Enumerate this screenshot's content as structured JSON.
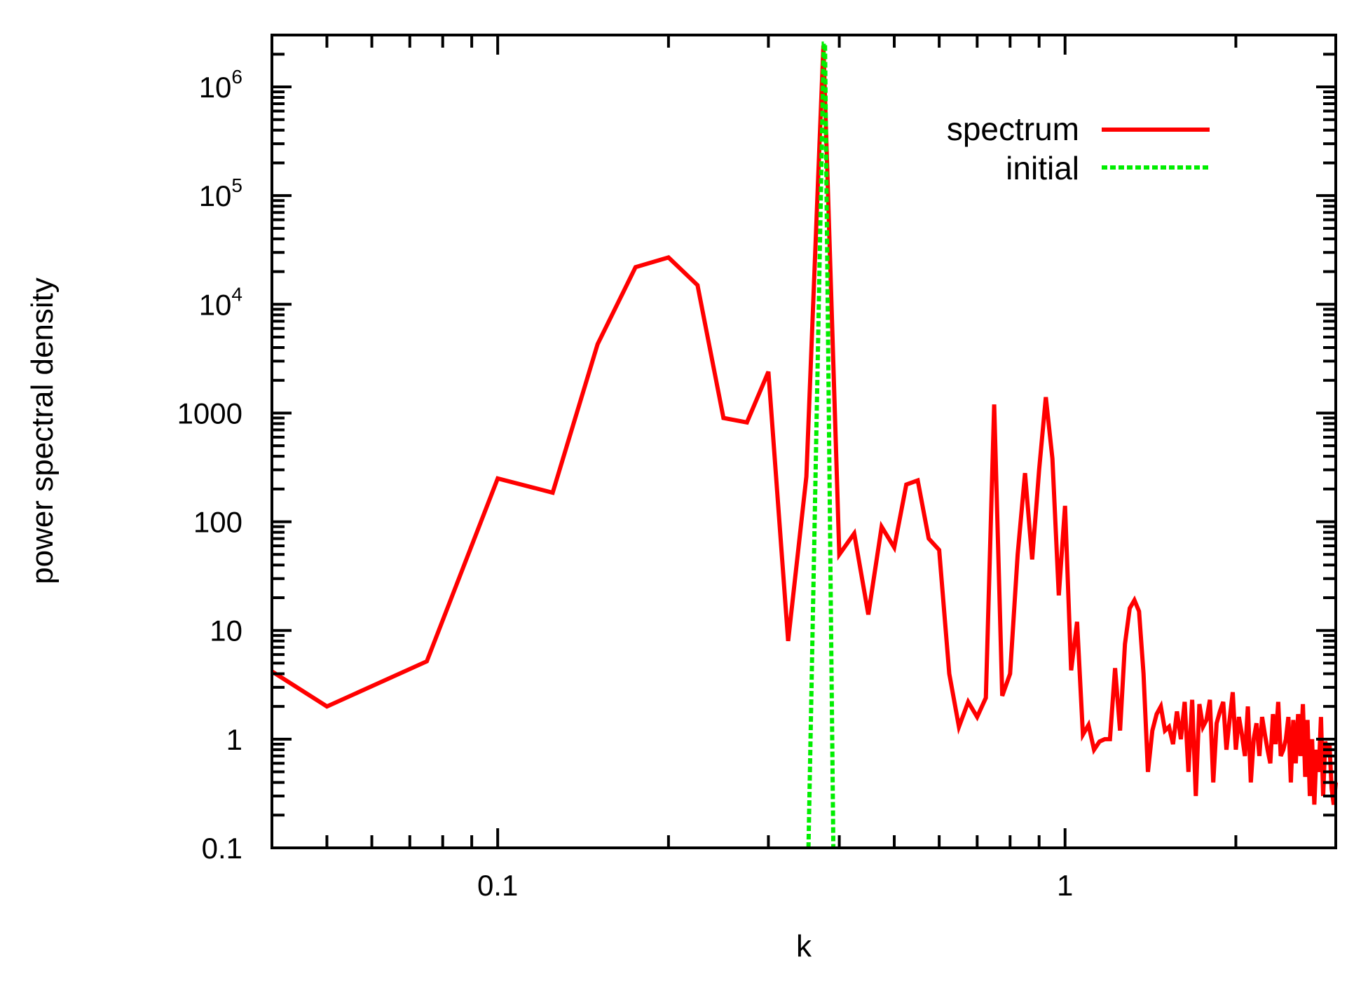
{
  "chart_data": {
    "type": "line",
    "xlabel": "k",
    "ylabel": "power spectral density",
    "xscale": "log",
    "yscale": "log",
    "xlim": [
      0.04,
      3.0
    ],
    "ylim": [
      0.1,
      3000000
    ],
    "grid": false,
    "legend_position": "top-right",
    "x_ticks": [
      {
        "value": 0.1,
        "label": "0.1"
      },
      {
        "value": 1,
        "label": "1"
      }
    ],
    "y_ticks": [
      {
        "value": 0.1,
        "label": "0.1",
        "base": "",
        "exp": ""
      },
      {
        "value": 1,
        "label": "1",
        "base": "",
        "exp": ""
      },
      {
        "value": 10,
        "label": "10",
        "base": "",
        "exp": ""
      },
      {
        "value": 100,
        "label": "100",
        "base": "",
        "exp": ""
      },
      {
        "value": 1000,
        "label": "1000",
        "base": "",
        "exp": ""
      },
      {
        "value": 10000,
        "label": "",
        "base": "10",
        "exp": "4"
      },
      {
        "value": 100000,
        "label": "",
        "base": "10",
        "exp": "5"
      },
      {
        "value": 1000000,
        "label": "",
        "base": "10",
        "exp": "6"
      }
    ],
    "series": [
      {
        "name": "spectrum",
        "color": "#ff0000",
        "dash": "solid",
        "x": [
          0.04,
          0.05,
          0.075,
          0.1,
          0.125,
          0.15,
          0.175,
          0.2,
          0.225,
          0.25,
          0.275,
          0.3,
          0.325,
          0.35,
          0.375,
          0.4,
          0.425,
          0.45,
          0.475,
          0.5,
          0.525,
          0.55,
          0.575,
          0.6,
          0.625,
          0.65,
          0.675,
          0.7,
          0.725,
          0.75,
          0.775,
          0.8,
          0.825,
          0.85,
          0.875,
          0.9,
          0.925,
          0.95,
          0.975,
          1.0,
          1.025,
          1.05,
          1.075,
          1.1,
          1.125,
          1.15,
          1.175,
          1.2,
          1.225,
          1.25,
          1.275,
          1.3,
          1.325,
          1.35,
          1.375,
          1.4,
          1.425,
          1.45,
          1.475,
          1.5,
          1.525,
          1.55,
          1.575,
          1.6,
          1.625,
          1.65,
          1.675,
          1.7,
          1.725,
          1.75,
          1.775,
          1.8,
          1.825,
          1.85,
          1.875,
          1.9,
          1.925,
          1.95,
          1.975,
          2.0,
          2.025,
          2.05,
          2.075,
          2.1,
          2.125,
          2.15,
          2.175,
          2.2,
          2.225,
          2.25,
          2.275,
          2.3,
          2.325,
          2.35,
          2.375,
          2.4,
          2.425,
          2.45,
          2.475,
          2.5,
          2.525,
          2.55,
          2.575,
          2.6,
          2.625,
          2.65,
          2.675,
          2.7,
          2.725,
          2.75,
          2.775,
          2.8,
          2.825,
          2.85,
          2.875,
          2.9,
          2.925,
          2.95,
          2.975,
          3.0
        ],
        "y": [
          4.2,
          2.0,
          5.2,
          250,
          185,
          4300,
          22000,
          27000,
          15000,
          900,
          820,
          2400,
          8,
          260,
          2400000,
          50,
          78,
          14,
          90,
          58,
          220,
          240,
          70,
          55,
          4,
          1.3,
          2.2,
          1.6,
          2.4,
          1200,
          2.5,
          4,
          50,
          280,
          45,
          300,
          1400,
          380,
          21,
          140,
          4.3,
          12,
          1.1,
          1.35,
          0.8,
          0.95,
          1.0,
          1.0,
          4.5,
          1.2,
          7.5,
          16,
          19,
          15,
          4.0,
          0.5,
          1.2,
          1.7,
          2.0,
          1.2,
          1.3,
          0.9,
          1.8,
          1.0,
          2.2,
          0.5,
          2.3,
          0.3,
          2.1,
          1.3,
          1.5,
          2.3,
          0.4,
          1.4,
          1.8,
          2.2,
          0.8,
          1.5,
          2.7,
          0.8,
          1.6,
          1.1,
          0.7,
          2.0,
          0.4,
          1.0,
          1.4,
          0.7,
          1.6,
          1.1,
          0.8,
          0.6,
          1.7,
          0.9,
          2.2,
          0.7,
          0.8,
          1.0,
          1.6,
          0.4,
          1.5,
          0.6,
          1.7,
          0.7,
          2.1,
          0.45,
          1.5,
          0.3,
          1.0,
          0.25,
          0.8,
          0.5,
          1.6,
          0.3,
          0.95,
          0.8,
          0.9,
          0.35,
          0.25,
          0.4
        ]
      },
      {
        "name": "initial",
        "color": "#00ee00",
        "dash": "dashed",
        "x": [
          0.353,
          0.3755,
          0.3775,
          0.3905
        ],
        "y": [
          0.1,
          2500000,
          2500000,
          0.1
        ]
      }
    ]
  }
}
